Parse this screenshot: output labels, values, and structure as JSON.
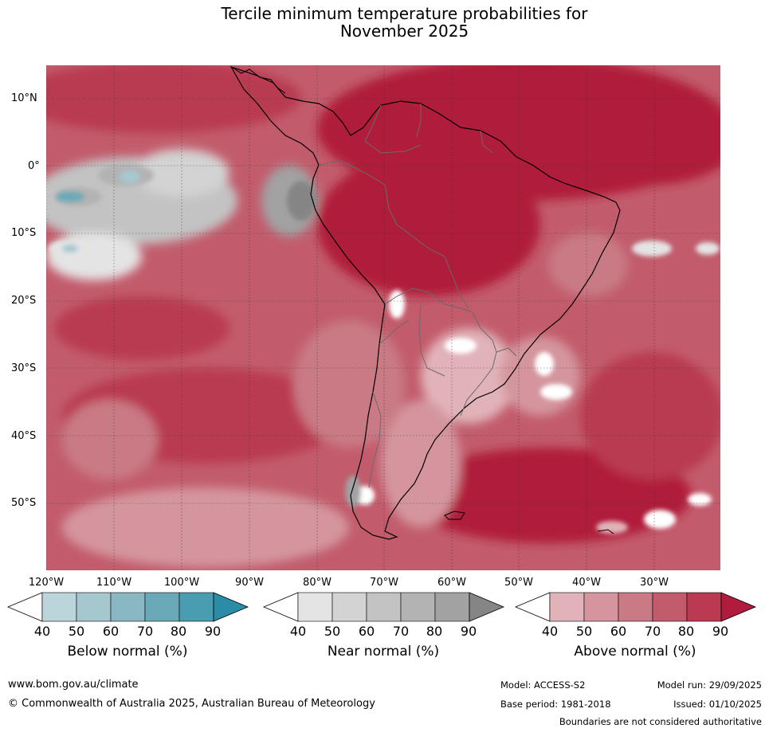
{
  "title": {
    "line1": "Tercile minimum temperature probabilities for",
    "line2": "November 2025"
  },
  "map": {
    "latitude_labels": [
      "10°N",
      "0°",
      "10°S",
      "20°S",
      "30°S",
      "40°S",
      "50°S"
    ],
    "longitude_labels": [
      "120°W",
      "110°W",
      "100°W",
      "90°W",
      "80°W",
      "70°W",
      "60°W",
      "50°W",
      "40°W",
      "30°W"
    ]
  },
  "legends": {
    "below": {
      "title": "Below normal (%)",
      "ticks": [
        "40",
        "50",
        "60",
        "70",
        "80",
        "90"
      ],
      "colors": [
        "#bcd5db",
        "#a5c8cf",
        "#89b8c3",
        "#6aaab8",
        "#4a9cb0",
        "#2a8ca6"
      ]
    },
    "near": {
      "title": "Near normal (%)",
      "ticks": [
        "40",
        "50",
        "60",
        "70",
        "80",
        "90"
      ],
      "colors": [
        "#e4e4e4",
        "#d3d3d3",
        "#c3c3c3",
        "#b3b3b3",
        "#a2a2a2",
        "#858585"
      ]
    },
    "above": {
      "title": "Above normal (%)",
      "ticks": [
        "40",
        "50",
        "60",
        "70",
        "80",
        "90"
      ],
      "colors": [
        "#e1b3b9",
        "#d4959e",
        "#c97a85",
        "#c25c6c",
        "#b93a51",
        "#b01c3b"
      ]
    }
  },
  "footer": {
    "website": "www.bom.gov.au/climate",
    "copyright": "© Commonwealth of Australia 2025, Australian Bureau of Meteorology",
    "model": "Model: ACCESS-S2",
    "base_period": "Base period: 1981-2018",
    "model_run": "Model run: 29/09/2025",
    "issued": "Issued: 01/10/2025",
    "disclaimer": "Boundaries are not considered authoritative"
  }
}
